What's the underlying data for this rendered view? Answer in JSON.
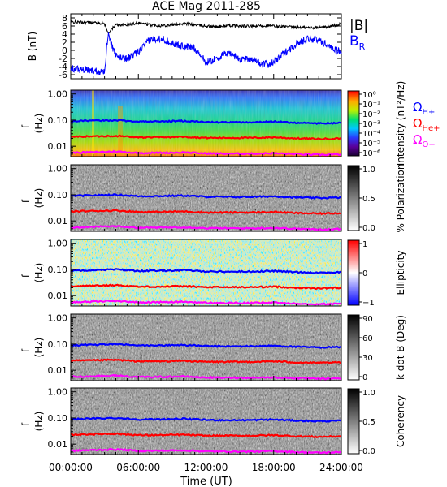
{
  "title": "ACE Mag 2011-285",
  "x_axis": {
    "label": "Time (UT)",
    "ticks": [
      "00:00:00",
      "06:00:00",
      "12:00:00",
      "18:00:00",
      "24:00:00"
    ],
    "range_hours": [
      0,
      24
    ]
  },
  "freq_axis": {
    "label_f": "f",
    "label_unit": "(Hz)",
    "ticks": [
      "1.00",
      "0.10",
      "0.01"
    ],
    "scale": "log",
    "range_hz": [
      0.004,
      1.4
    ]
  },
  "legend_top": {
    "abs_b": "|B|",
    "b_r_main": "B",
    "b_r_sub": "R",
    "abs_b_color": "#000000",
    "b_r_color": "#0000ff"
  },
  "legend_gyro": [
    {
      "sym": "Ω",
      "sub": "H+",
      "color": "#0000ff"
    },
    {
      "sym": "Ω",
      "sub": "He+",
      "color": "#ff0000"
    },
    {
      "sym": "Ω",
      "sub": "O+",
      "color": "#ff00ff"
    }
  ],
  "panels": [
    {
      "id": "intensity",
      "colorbar_type": "rainbow",
      "colorbar_label": "Intensity (nT²/Hz)",
      "colorbar_ticks": [
        "10⁰",
        "10⁻¹",
        "10⁻²",
        "10⁻³",
        "10⁻⁴",
        "10⁻⁵",
        "10⁻⁶"
      ]
    },
    {
      "id": "polarization",
      "colorbar_type": "gray",
      "colorbar_label": "% Polarization",
      "colorbar_ticks": [
        "1.0",
        "0.5",
        "0.0"
      ]
    },
    {
      "id": "ellipticity",
      "colorbar_type": "bwr",
      "colorbar_label": "Ellipticity",
      "colorbar_ticks": [
        "1",
        "0",
        "−1"
      ]
    },
    {
      "id": "kdotb",
      "colorbar_type": "gray",
      "colorbar_label": "k dot B (Deg)",
      "colorbar_ticks": [
        "90",
        "60",
        "30",
        "0"
      ]
    },
    {
      "id": "coherency",
      "colorbar_type": "gray",
      "colorbar_label": "Coherency",
      "colorbar_ticks": [
        "1.0",
        "0.5",
        "0.0"
      ]
    }
  ],
  "chart_data": [
    {
      "type": "line",
      "panel": "magnetic field",
      "ylabel": "B (nT)",
      "ylim": [
        -7,
        9
      ],
      "yticks": [
        "8",
        "6",
        "4",
        "2",
        "0",
        "-2",
        "-4",
        "-6"
      ],
      "x_hours": [
        0,
        1,
        2,
        3,
        3.3,
        4,
        5,
        6,
        7,
        8,
        9,
        10,
        11,
        12,
        13,
        14,
        15,
        16,
        17,
        18,
        19,
        20,
        21,
        22,
        23,
        24
      ],
      "series": [
        {
          "name": "|B|",
          "color": "#000000",
          "values": [
            7.0,
            6.9,
            6.9,
            6.6,
            4.2,
            6.3,
            6.3,
            6.8,
            6.3,
            6.1,
            6.3,
            6.6,
            6.3,
            6.0,
            5.8,
            6.1,
            6.0,
            5.9,
            6.1,
            6.0,
            5.8,
            5.7,
            5.6,
            5.6,
            5.9,
            6.5
          ]
        },
        {
          "name": "B_R",
          "color": "#0000ff",
          "values": [
            -4.5,
            -4.8,
            -5.0,
            -5.2,
            4.0,
            -1.5,
            -2.0,
            -0.5,
            2.6,
            3.0,
            1.8,
            1.0,
            0.6,
            -3.0,
            -2.0,
            -0.5,
            -2.2,
            -2.0,
            -3.5,
            -3.0,
            -0.5,
            1.5,
            3.0,
            2.5,
            1.0,
            -0.5
          ]
        }
      ]
    },
    {
      "type": "line",
      "panel": "gyrofrequency traces (overlaid on all spectral panels)",
      "ylabel": "f (Hz)",
      "yscale": "log",
      "x_hours": [
        0,
        2,
        4,
        6,
        8,
        10,
        12,
        14,
        16,
        18,
        20,
        22,
        24
      ],
      "series": [
        {
          "name": "Ω_H+",
          "color": "#0000ff",
          "values": [
            0.09,
            0.095,
            0.1,
            0.088,
            0.089,
            0.093,
            0.084,
            0.082,
            0.083,
            0.087,
            0.079,
            0.075,
            0.078
          ]
        },
        {
          "name": "Ω_He+",
          "color": "#ff0000",
          "values": [
            0.023,
            0.024,
            0.025,
            0.022,
            0.022,
            0.023,
            0.021,
            0.021,
            0.021,
            0.022,
            0.02,
            0.019,
            0.02
          ]
        },
        {
          "name": "Ω_O+",
          "color": "#ff00ff",
          "values": [
            0.0056,
            0.0059,
            0.0063,
            0.0055,
            0.0056,
            0.0058,
            0.0053,
            0.0052,
            0.0052,
            0.0054,
            0.005,
            0.0047,
            0.0049
          ]
        }
      ]
    }
  ]
}
